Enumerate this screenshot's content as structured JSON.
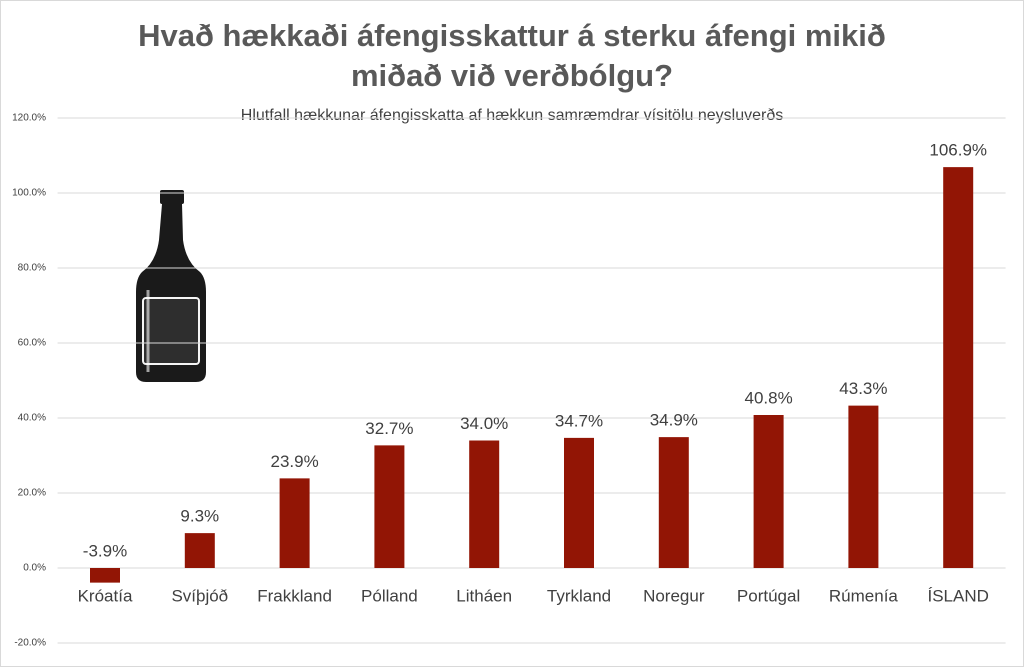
{
  "chart_data": {
    "type": "bar",
    "title": [
      "Hvað hækkaði áfengisskattur á sterku áfengi mikið",
      "miðað við verðbólgu?"
    ],
    "subtitle": "Hlutfall hækkunar áfengisskatta af hækkun samræmdrar vísitölu neysluverðs",
    "categories": [
      "Króatía",
      "Svíþjóð",
      "Frakkland",
      "Pólland",
      "Litháen",
      "Tyrkland",
      "Noregur",
      "Portúgal",
      "Rúmenía",
      "ÍSLAND"
    ],
    "values": [
      -3.9,
      9.3,
      23.9,
      32.7,
      34.0,
      34.7,
      34.9,
      40.8,
      43.3,
      106.9
    ],
    "value_labels": [
      "-3.9%",
      "9.3%",
      "23.9%",
      "32.7%",
      "34.0%",
      "34.7%",
      "34.9%",
      "40.8%",
      "43.3%",
      "106.9%"
    ],
    "color": "#921505",
    "ylim": [
      -20,
      120
    ],
    "yticks": [
      {
        "value": -20,
        "label": "-20.0%"
      },
      {
        "value": 0,
        "label": "0.0%"
      },
      {
        "value": 20,
        "label": "20.0%"
      },
      {
        "value": 40,
        "label": "40.0%"
      },
      {
        "value": 60,
        "label": "60.0%"
      },
      {
        "value": 80,
        "label": "80.0%"
      },
      {
        "value": 100,
        "label": "100.0%"
      },
      {
        "value": 120,
        "label": "120.0%"
      }
    ],
    "grid": true
  }
}
